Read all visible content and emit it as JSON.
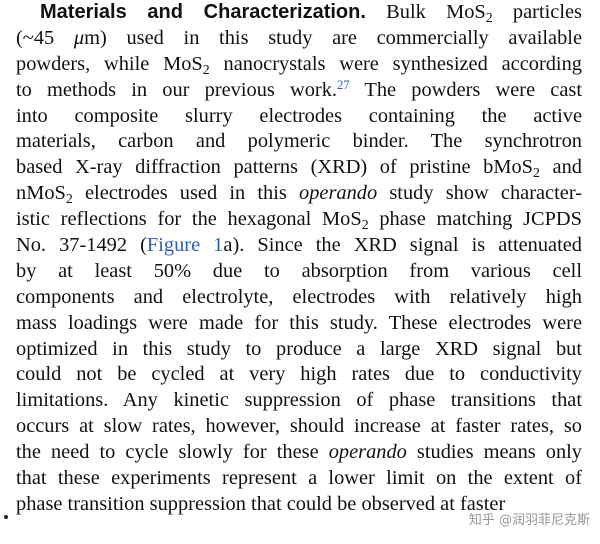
{
  "paragraph": {
    "line1": {
      "heading": "Materials and Characterization.",
      "text_a": " Bulk MoS",
      "sub_a": "2",
      "text_b": " particles"
    },
    "line2": {
      "text_a": "(~45 ",
      "mu": "μ",
      "text_b": "m) used in this study are commercially available"
    },
    "line3": {
      "text_a": "powders, while MoS",
      "sub_a": "2",
      "text_b": " nanocrystals were synthesized according"
    },
    "line4": {
      "text_a": "to methods in our previous work.",
      "sup": "27",
      "text_b": " The powders were cast"
    },
    "line5": {
      "text": "into composite slurry electrodes containing the active"
    },
    "line6": {
      "text": "materials, carbon and polymeric binder. The synchrotron"
    },
    "line7": {
      "text_a": "based X-ray diffraction patterns (XRD) of pristine bMoS",
      "sub_a": "2",
      "text_b": " and"
    },
    "line8": {
      "text_a": "nMoS",
      "sub_a": "2",
      "text_b": " electrodes used in this ",
      "em": "operando",
      "text_c": " study show character-"
    },
    "line9": {
      "text_a": "istic reflections for the hexagonal MoS",
      "sub_a": "2",
      "text_b": " phase matching JCPDS"
    },
    "line10": {
      "text_a": "No. 37-1492 (",
      "link": "Figure 1",
      "text_b": "a). Since the XRD signal is attenuated"
    },
    "line11": {
      "text": "by at least 50% due to absorption from various cell"
    },
    "line12": {
      "text": "components and electrolyte, electrodes with relatively high"
    },
    "line13": {
      "text": "mass loadings were made for this study. These electrodes were"
    },
    "line14": {
      "text": "optimized in this study to produce a large XRD signal but"
    },
    "line15": {
      "text": "could not be cycled at very high rates due to conductivity"
    },
    "line16": {
      "text": "limitations. Any kinetic suppression of phase transitions that"
    },
    "line17": {
      "text": "occurs at slow rates, however, should increase at faster rates, so"
    },
    "line18": {
      "text_a": "the need to cycle slowly for these ",
      "em": "operando",
      "text_b": " studies means only"
    },
    "line19": {
      "text": "that these experiments represent a lower limit on the extent of"
    },
    "line20": {
      "text": "phase transition suppression that could be observed at faster"
    }
  },
  "watermark": "知乎 @润羽菲尼克斯"
}
